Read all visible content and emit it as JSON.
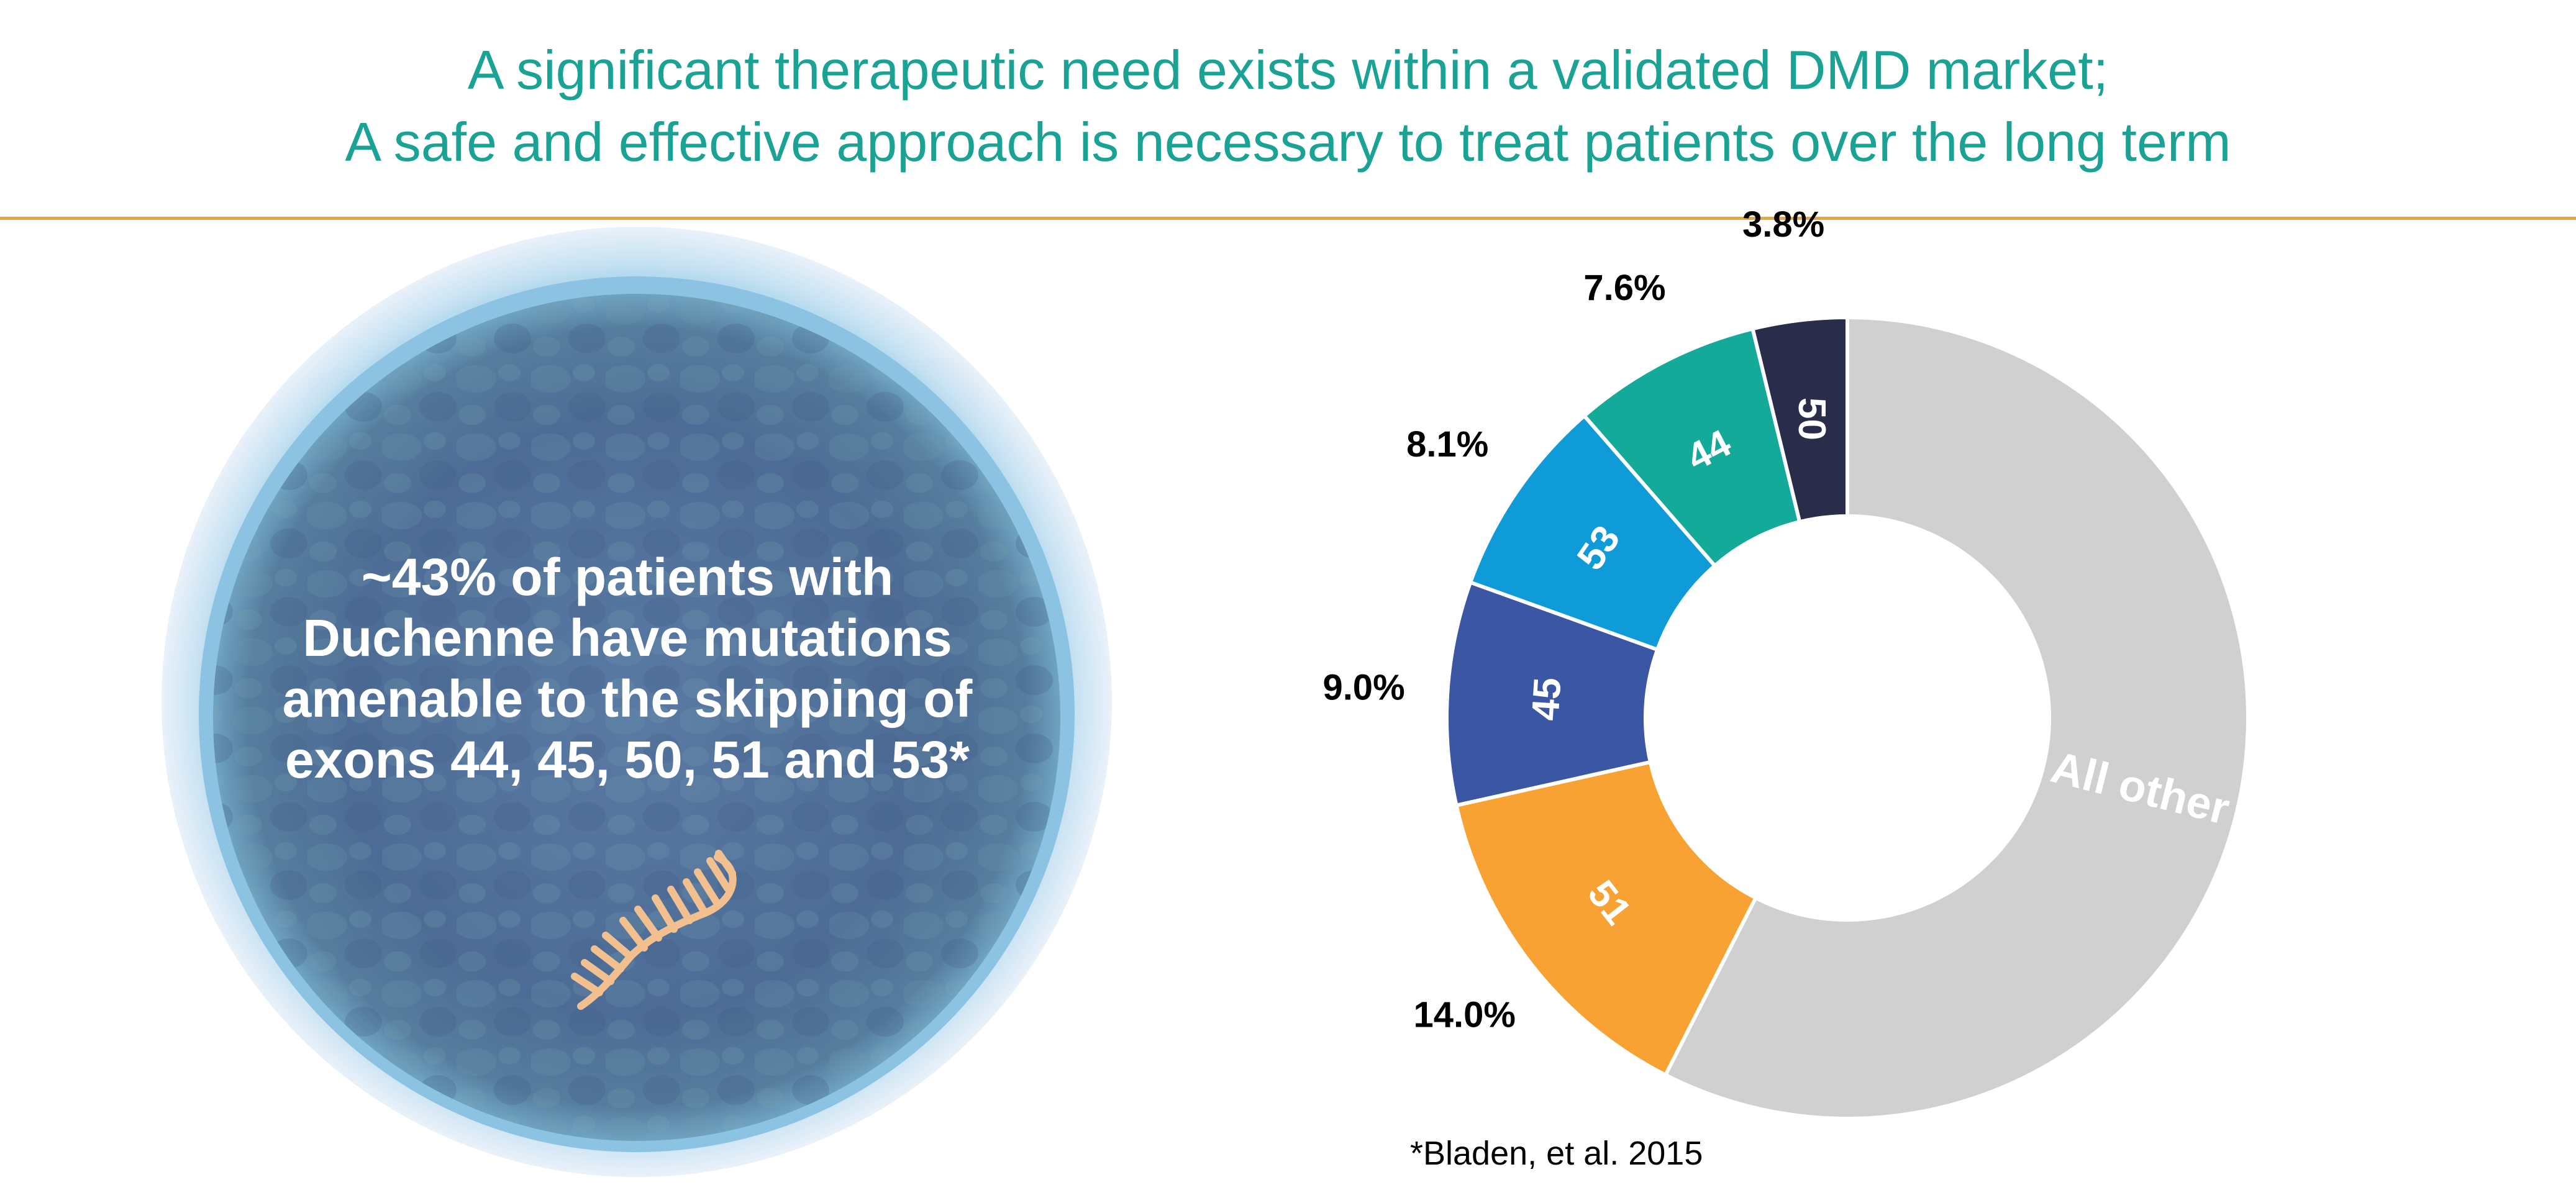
{
  "header": {
    "title_line1": "A significant therapeutic need exists within a validated DMD market;",
    "title_line2": "A safe and effective approach is necessary to treat patients over the long term"
  },
  "cell_panel": {
    "line1": "~43% of patients with",
    "line2": "Duchenne have mutations",
    "line3": "amenable to the skipping of",
    "line4": "exons 44, 45, 50, 51 and 53*"
  },
  "footnote": "*Bladen, et al. 2015",
  "colors": {
    "title": "#1AA394",
    "rule": "#F0A33A",
    "cell_outer": "#E8EEF8",
    "cell_ring": "#8FC7E6",
    "cell_body": "#4E6C94",
    "strand": "#F2C08E"
  },
  "chart_data": {
    "type": "pie",
    "donut": true,
    "title": "",
    "slices": [
      {
        "label": "50",
        "value": 3.8,
        "percent_label": "3.8%",
        "color": "#2A2D4A"
      },
      {
        "label": "All other",
        "value": 57.5,
        "percent_label": "",
        "color": "#D0D0D0"
      },
      {
        "label": "51",
        "value": 14.0,
        "percent_label": "14.0%",
        "color": "#F7A233"
      },
      {
        "label": "45",
        "value": 9.0,
        "percent_label": "9.0%",
        "color": "#3B56A3"
      },
      {
        "label": "53",
        "value": 8.1,
        "percent_label": "8.1%",
        "color": "#0F9BD8"
      },
      {
        "label": "44",
        "value": 7.6,
        "percent_label": "7.6%",
        "color": "#13AA9A"
      }
    ]
  }
}
